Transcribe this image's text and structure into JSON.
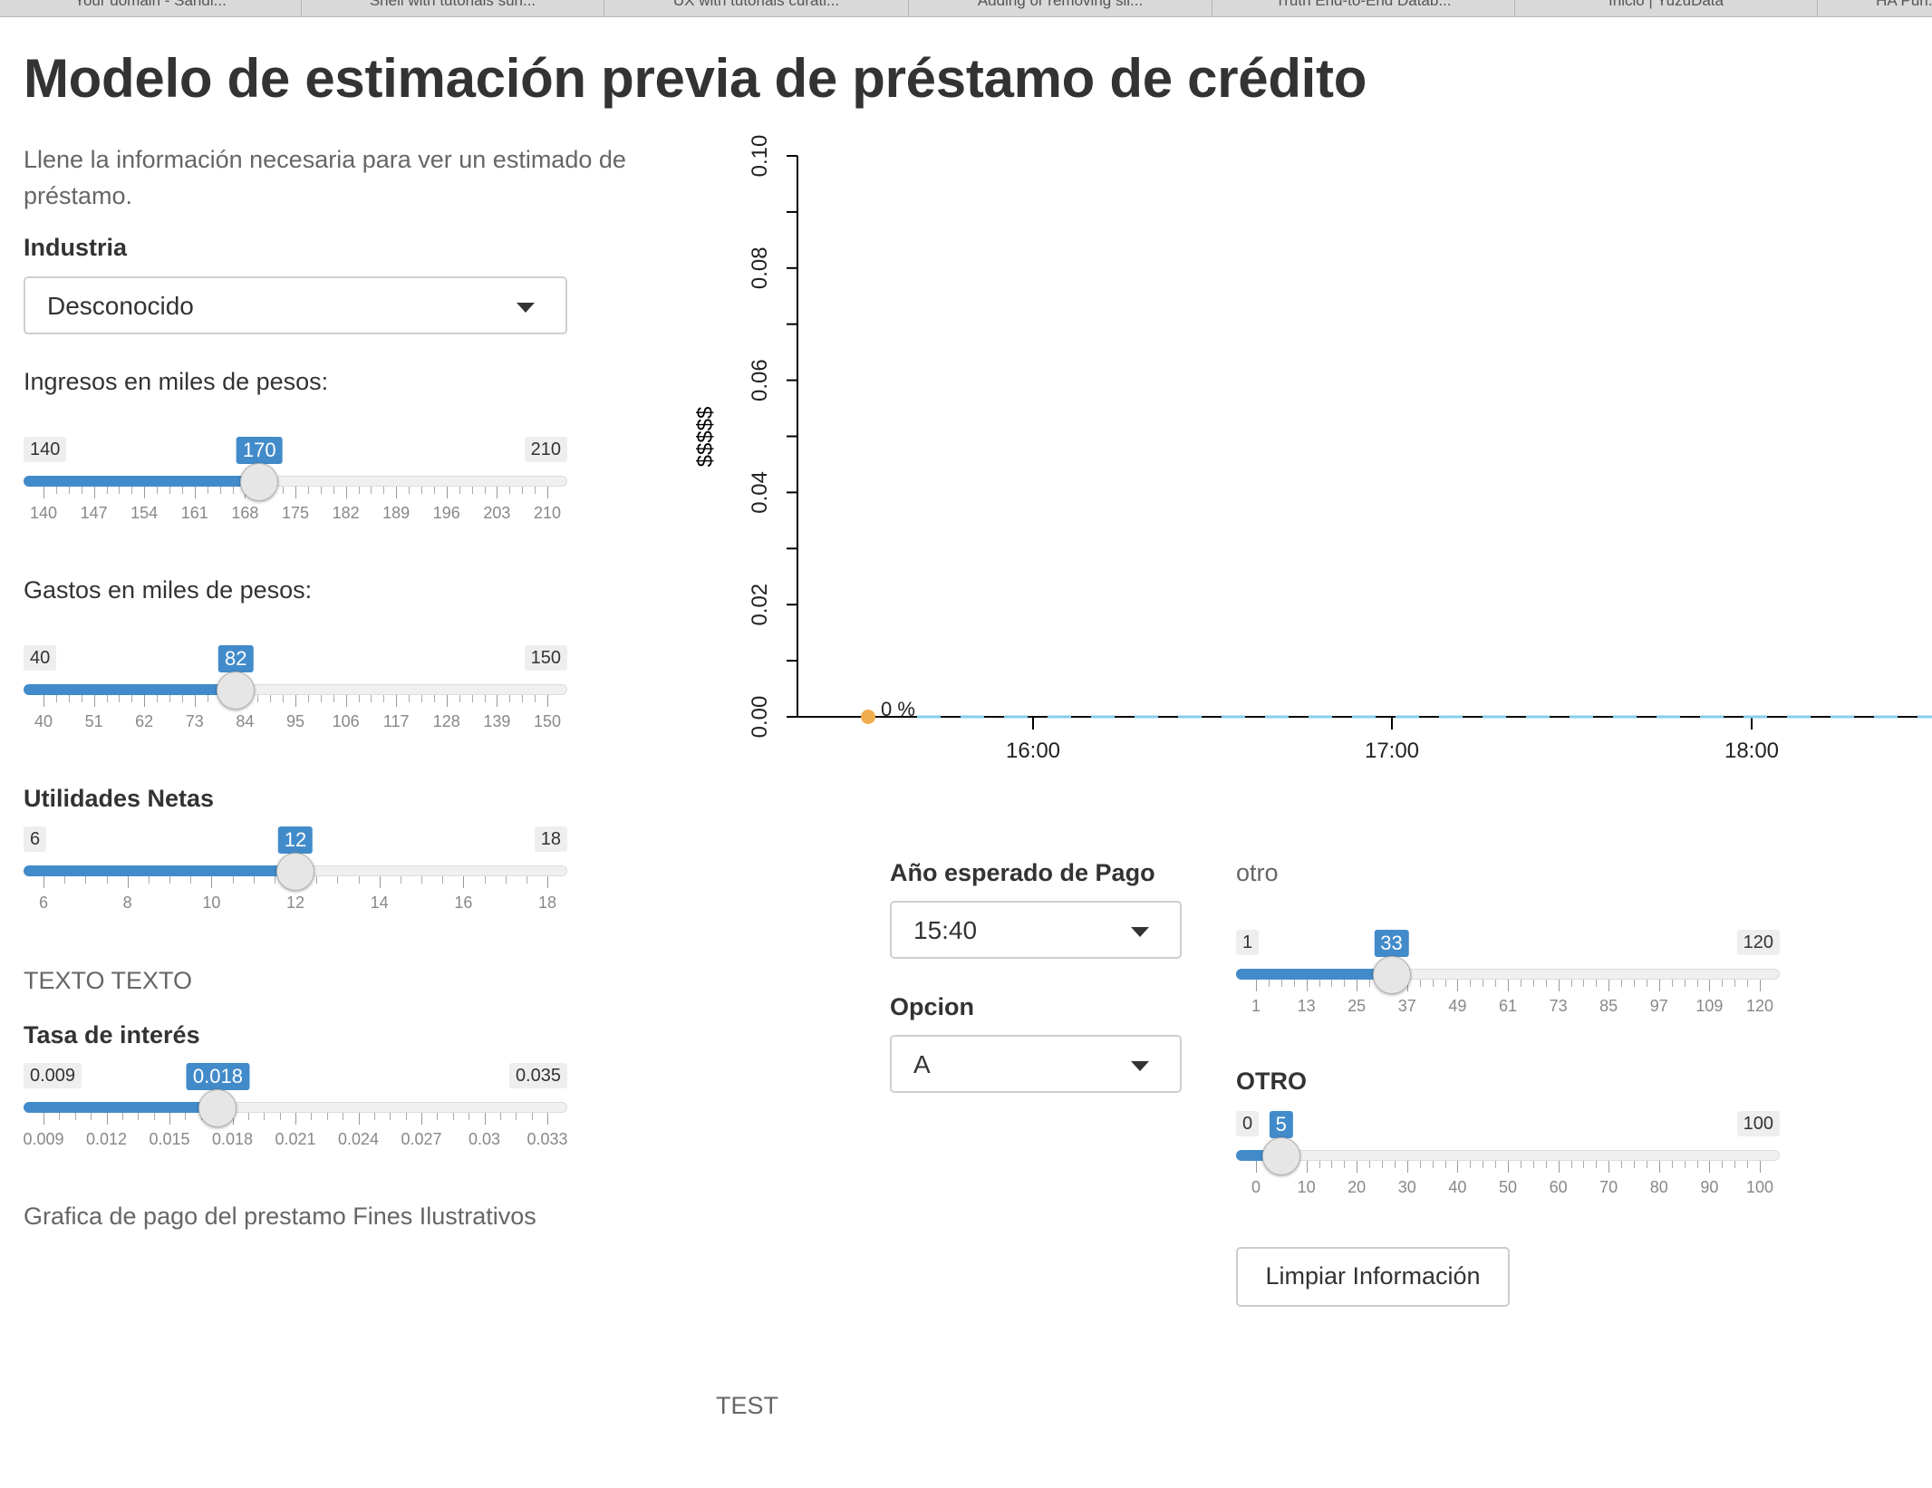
{
  "browser_tabs": [
    "Your domain - Sandi...",
    "Shell with tutorials sun...",
    "UX with tutorials curati...",
    "Adding or removing sli...",
    "Truth End-to-End Datab...",
    "Inicio | YuzuData",
    "HA Pun..."
  ],
  "page_title": "Modelo de estimación previa de préstamo de crédito",
  "intro_text": "Llene la información necesaria para ver un estimado de préstamo.",
  "industria": {
    "label": "Industria",
    "value": "Desconocido"
  },
  "ingresos": {
    "label": "Ingresos en miles de pesos:",
    "min": 140,
    "max": 210,
    "value": 170,
    "min_label": "140",
    "max_label": "210",
    "value_label": "170",
    "tick_labels": [
      "140",
      "147",
      "154",
      "161",
      "168",
      "175",
      "182",
      "189",
      "196",
      "203",
      "210"
    ]
  },
  "gastos": {
    "label": "Gastos en miles de pesos:",
    "min": 40,
    "max": 150,
    "value": 82,
    "min_label": "40",
    "max_label": "150",
    "value_label": "82",
    "tick_labels": [
      "40",
      "51",
      "62",
      "73",
      "84",
      "95",
      "106",
      "117",
      "128",
      "139",
      "150"
    ]
  },
  "utilidades": {
    "label": "Utilidades Netas",
    "min": 6,
    "max": 18,
    "value": 12,
    "min_label": "6",
    "max_label": "18",
    "value_label": "12",
    "tick_labels": [
      "6",
      "8",
      "10",
      "12",
      "14",
      "16",
      "18"
    ]
  },
  "texto": "TEXTO TEXTO",
  "tasa": {
    "label": "Tasa de interés",
    "min": 0.009,
    "max": 0.035,
    "value": 0.018,
    "min_label": "0.009",
    "max_label": "0.035",
    "value_label": "0.018",
    "tick_labels": [
      "0.009",
      "0.012",
      "0.015",
      "0.018",
      "0.021",
      "0.024",
      "0.027",
      "0.03",
      "0.033"
    ]
  },
  "grafica_note": "Grafica de pago del prestamo Fines Ilustrativos",
  "footer_text": "TEST",
  "anio": {
    "label": "Año esperado de Pago",
    "value": "15:40"
  },
  "opcion": {
    "label": "Opcion",
    "value": "A"
  },
  "otro": {
    "label": "otro",
    "min": 1,
    "max": 120,
    "value": 33,
    "min_label": "1",
    "max_label": "120",
    "value_label": "33",
    "tick_labels": [
      "1",
      "13",
      "25",
      "37",
      "49",
      "61",
      "73",
      "85",
      "97",
      "109",
      "120"
    ]
  },
  "otro2": {
    "label": "OTRO",
    "min": 0,
    "max": 100,
    "value": 5,
    "min_label": "0",
    "max_label": "100",
    "value_label": "5",
    "tick_labels": [
      "0",
      "10",
      "20",
      "30",
      "40",
      "50",
      "60",
      "70",
      "80",
      "90",
      "100"
    ]
  },
  "clear_button": "Limpiar Información",
  "colors": {
    "accent": "#428bca",
    "line": "#87ceeb",
    "point": "#f0ad4e"
  },
  "chart_data": {
    "type": "line",
    "ylabel": "$$$$$",
    "ylim": [
      0,
      0.1
    ],
    "y_ticks": [
      "0.00",
      "0.02",
      "0.04",
      "0.06",
      "0.08",
      "0.10"
    ],
    "x_ticks": [
      "16:00",
      "17:00",
      "18:00"
    ],
    "series": [
      {
        "values": [
          0,
          0,
          0,
          0,
          0,
          0,
          0,
          0
        ]
      }
    ],
    "annotation": "0 %"
  }
}
